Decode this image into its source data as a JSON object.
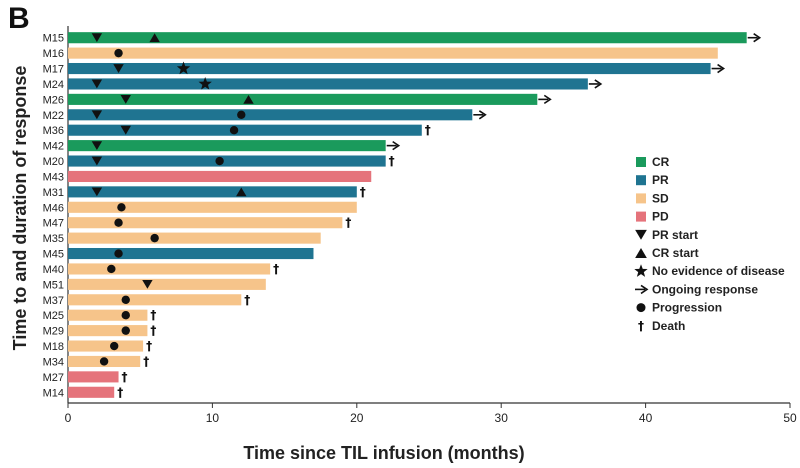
{
  "panel_label": "B",
  "chart_data": {
    "type": "swimmer",
    "xlabel": "Time since TIL infusion (months)",
    "ylabel": "Time to and duration of response",
    "xlim": [
      0,
      50
    ],
    "xticks": [
      0,
      10,
      20,
      30,
      40,
      50
    ],
    "response_colors": {
      "CR": "#1a9a5c",
      "PR": "#1f7491",
      "SD": "#f6c48a",
      "PD": "#e5737b"
    },
    "legend": [
      {
        "key": "CR",
        "label": "CR",
        "kind": "swatch"
      },
      {
        "key": "PR",
        "label": "PR",
        "kind": "swatch"
      },
      {
        "key": "SD",
        "label": "SD",
        "kind": "swatch"
      },
      {
        "key": "PD",
        "label": "PD",
        "kind": "swatch"
      },
      {
        "key": "pr_start",
        "label": "PR start",
        "kind": "tri_down"
      },
      {
        "key": "cr_start",
        "label": "CR start",
        "kind": "tri_up"
      },
      {
        "key": "ned",
        "label": "No evidence of disease",
        "kind": "star"
      },
      {
        "key": "ongoing",
        "label": "Ongoing response",
        "kind": "arrow"
      },
      {
        "key": "progression",
        "label": "Progression",
        "kind": "circle"
      },
      {
        "key": "death",
        "label": "Death",
        "kind": "dagger"
      }
    ],
    "patients": [
      {
        "id": "M15",
        "response": "CR",
        "duration": 47,
        "pr_start": 2,
        "cr_start": 6,
        "ongoing": true
      },
      {
        "id": "M16",
        "response": "SD",
        "duration": 45,
        "progression": 3.5
      },
      {
        "id": "M17",
        "response": "PR",
        "duration": 44.5,
        "pr_start": 3.5,
        "ned": 8,
        "ongoing": true
      },
      {
        "id": "M24",
        "response": "PR",
        "duration": 36,
        "pr_start": 2,
        "ned": 9.5,
        "ongoing": true
      },
      {
        "id": "M26",
        "response": "CR",
        "duration": 32.5,
        "pr_start": 4,
        "cr_start": 12.5,
        "ongoing": true
      },
      {
        "id": "M22",
        "response": "PR",
        "duration": 28,
        "pr_start": 2,
        "progression": 12,
        "ongoing": true
      },
      {
        "id": "M36",
        "response": "PR",
        "duration": 24.5,
        "pr_start": 4,
        "progression": 11.5,
        "death": true
      },
      {
        "id": "M42",
        "response": "CR",
        "duration": 22,
        "pr_start": 2,
        "ongoing": true
      },
      {
        "id": "M20",
        "response": "PR",
        "duration": 22,
        "pr_start": 2,
        "progression": 10.5,
        "death": true
      },
      {
        "id": "M43",
        "response": "PD",
        "duration": 21
      },
      {
        "id": "M31",
        "response": "PR",
        "duration": 20,
        "pr_start": 2,
        "cr_start": 12,
        "death": true
      },
      {
        "id": "M46",
        "response": "SD",
        "duration": 20,
        "progression": 3.7
      },
      {
        "id": "M47",
        "response": "SD",
        "duration": 19,
        "progression": 3.5,
        "death": true
      },
      {
        "id": "M35",
        "response": "SD",
        "duration": 17.5,
        "progression": 6
      },
      {
        "id": "M45",
        "response": "PR",
        "duration": 17,
        "progression": 3.5
      },
      {
        "id": "M40",
        "response": "SD",
        "duration": 14,
        "progression": 3,
        "death": true
      },
      {
        "id": "M51",
        "response": "SD",
        "duration": 13.7,
        "pr_start": 5.5
      },
      {
        "id": "M37",
        "response": "SD",
        "duration": 12,
        "progression": 4,
        "death": true
      },
      {
        "id": "M25",
        "response": "SD",
        "duration": 5.5,
        "progression": 4,
        "death": true
      },
      {
        "id": "M29",
        "response": "SD",
        "duration": 5.5,
        "progression": 4,
        "death": true
      },
      {
        "id": "M18",
        "response": "SD",
        "duration": 5.2,
        "progression": 3.2,
        "death": true
      },
      {
        "id": "M34",
        "response": "SD",
        "duration": 5,
        "progression": 2.5,
        "death": true
      },
      {
        "id": "M27",
        "response": "PD",
        "duration": 3.5,
        "death": true
      },
      {
        "id": "M14",
        "response": "PD",
        "duration": 3.2,
        "death": true
      }
    ]
  }
}
